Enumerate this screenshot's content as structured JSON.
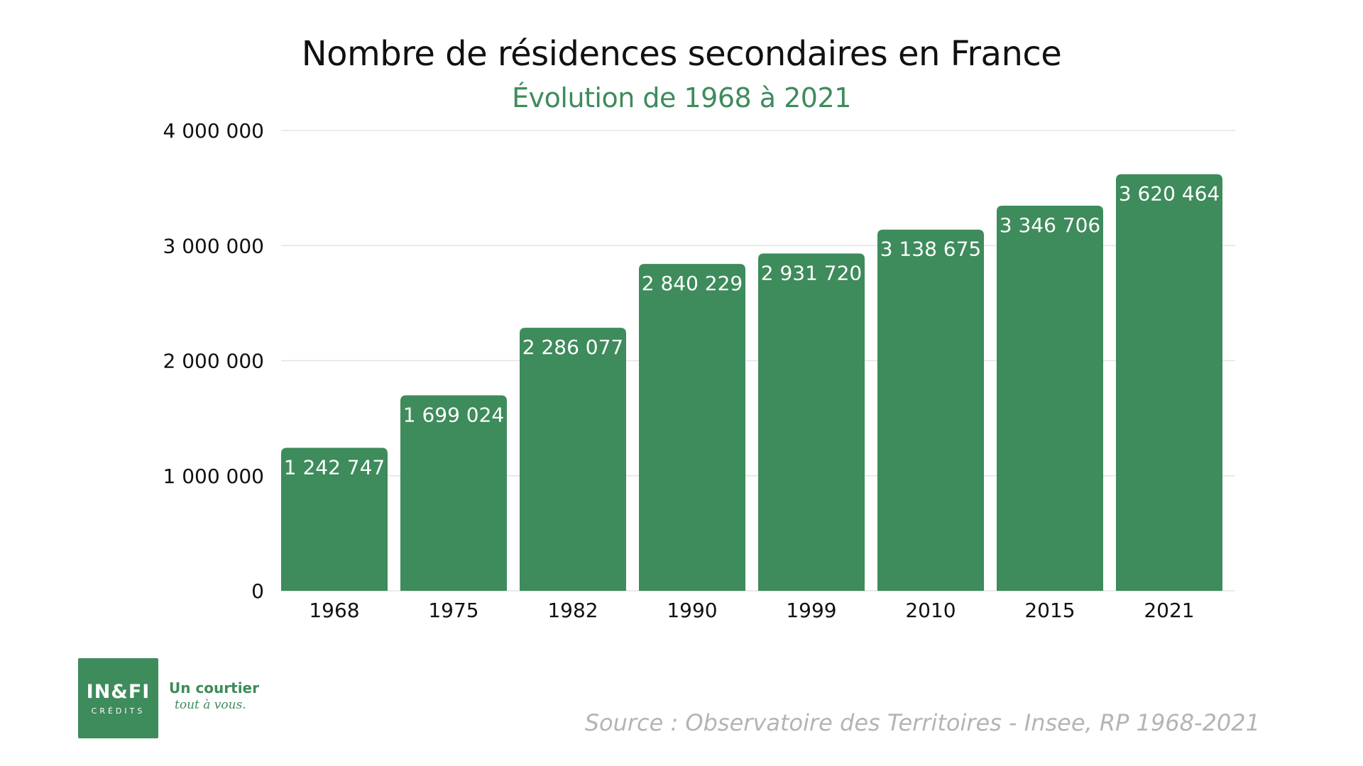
{
  "header": {
    "title": "Nombre de résidences secondaires en France",
    "subtitle": "Évolution de 1968 à 2021"
  },
  "chart_data": {
    "type": "bar",
    "title": "Nombre de résidences secondaires en France",
    "subtitle": "Évolution de 1968 à 2021",
    "xlabel": "",
    "ylabel": "",
    "categories": [
      "1968",
      "1975",
      "1982",
      "1990",
      "1999",
      "2010",
      "2015",
      "2021"
    ],
    "values": [
      1242747,
      1699024,
      2286077,
      2840229,
      2931720,
      3138675,
      3346706,
      3620464
    ],
    "value_labels": [
      "1 242 747",
      "1 699 024",
      "2 286 077",
      "2 840 229",
      "2 931 720",
      "3 138 675",
      "3 346 706",
      "3 620 464"
    ],
    "ylim": [
      0,
      4000000
    ],
    "yticks": [
      0,
      1000000,
      2000000,
      3000000,
      4000000
    ],
    "ytick_labels": [
      "0",
      "1 000 000",
      "2 000 000",
      "3 000 000",
      "4 000 000"
    ],
    "grid": true,
    "legend": "none",
    "bar_color": "#3e8b5c",
    "grid_color": "#e3e3e3"
  },
  "footer": {
    "logo_main": "IN&FI",
    "logo_sub": "CRÉDITS",
    "tagline_line1": "Un courtier",
    "tagline_line2": "tout à vous.",
    "source": "Source : Observatoire des Territoires - Insee, RP 1968-2021"
  },
  "colors": {
    "accent": "#3e8b5c",
    "source_text": "#b4b4b4"
  }
}
